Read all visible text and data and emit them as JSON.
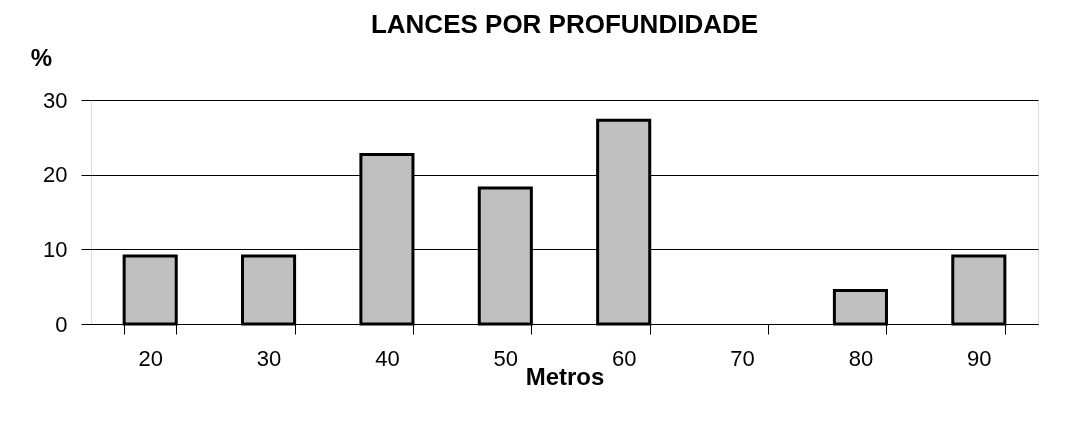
{
  "chart_data": {
    "type": "bar",
    "title": "LANCES POR PROFUNDIDADE",
    "ylabel": "%",
    "xlabel": "Metros",
    "categories": [
      "20",
      "30",
      "40",
      "50",
      "60",
      "70",
      "80",
      "90"
    ],
    "values": [
      9.1,
      9.1,
      22.7,
      18.2,
      27.3,
      0,
      4.5,
      9.1
    ],
    "color": "#c0c0c0",
    "ylim": [
      0,
      30
    ],
    "yticks": [
      0,
      10,
      20,
      30
    ],
    "grid": "y"
  }
}
